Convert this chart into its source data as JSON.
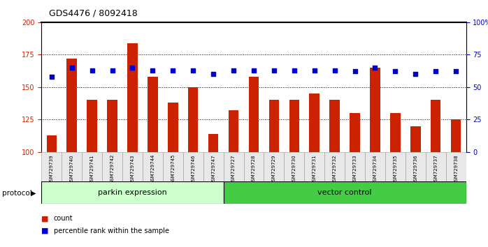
{
  "title": "GDS4476 / 8092418",
  "samples": [
    "GSM729739",
    "GSM729740",
    "GSM729741",
    "GSM729742",
    "GSM729743",
    "GSM729744",
    "GSM729745",
    "GSM729746",
    "GSM729747",
    "GSM729727",
    "GSM729728",
    "GSM729729",
    "GSM729730",
    "GSM729731",
    "GSM729732",
    "GSM729733",
    "GSM729734",
    "GSM729735",
    "GSM729736",
    "GSM729737",
    "GSM729738"
  ],
  "count_values": [
    113,
    172,
    140,
    140,
    184,
    158,
    138,
    150,
    114,
    132,
    158,
    140,
    140,
    145,
    140,
    130,
    165,
    130,
    120,
    140,
    125
  ],
  "percentile_values": [
    58,
    65,
    63,
    63,
    65,
    63,
    63,
    63,
    60,
    63,
    63,
    63,
    63,
    63,
    63,
    62,
    65,
    62,
    60,
    62,
    62
  ],
  "parkin_count": 9,
  "vector_count": 12,
  "parkin_label": "parkin expression",
  "vector_label": "vector control",
  "protocol_label": "protocol",
  "ylim_left": [
    100,
    200
  ],
  "ylim_right": [
    0,
    100
  ],
  "yticks_left": [
    100,
    125,
    150,
    175,
    200
  ],
  "yticks_right": [
    0,
    25,
    50,
    75,
    100
  ],
  "bar_color": "#cc2200",
  "dot_color": "#0000cc",
  "parkin_bg": "#ccffcc",
  "vector_bg": "#44cc44",
  "sample_bg": "#e8e8e8",
  "legend_count_label": "count",
  "legend_pct_label": "percentile rank within the sample"
}
